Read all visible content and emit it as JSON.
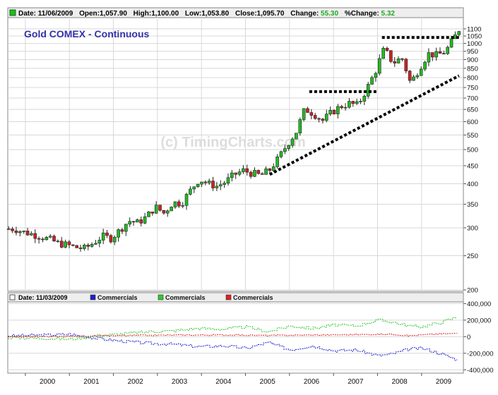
{
  "header": {
    "date_label": "Date: 11/06/2009",
    "open_label": "Open:1,057.90",
    "high_label": "High:1,100.00",
    "low_label": "Low:1,053.80",
    "close_label": "Close:1,095.70",
    "change_label": "Change:",
    "change_value": "55.30",
    "pct_change_label": "%Change:",
    "pct_change_value": "5.32"
  },
  "chart_title": "Gold COMEX - Continuous",
  "watermark": "(c) TimingCharts.com",
  "lower_header": {
    "date_label": "Date: 11/03/2009",
    "legend": [
      {
        "label": "Commercials",
        "color": "#1f1fd0"
      },
      {
        "label": "Commercials",
        "color": "#2fc92f"
      },
      {
        "label": "Commercials",
        "color": "#e02020"
      }
    ]
  },
  "colors": {
    "up_candle": "#22bb22",
    "down_candle": "#cc2222",
    "change_text": "#22aa22",
    "title": "#3333aa",
    "trendline": "#000000"
  },
  "chart_data": [
    {
      "type": "candlestick",
      "title": "Gold COMEX - Continuous",
      "y_scale": "log",
      "ylim": [
        200,
        1120
      ],
      "y_ticks": [
        200,
        250,
        300,
        350,
        400,
        450,
        500,
        550,
        600,
        650,
        700,
        750,
        800,
        850,
        900,
        950,
        1000,
        1050,
        1100
      ],
      "x_ticks": [
        "2000",
        "2001",
        "2002",
        "2003",
        "2004",
        "2005",
        "2006",
        "2007",
        "2008",
        "2009"
      ],
      "x_range": [
        1999.6,
        2009.95
      ],
      "grid": true,
      "closes": [
        [
          1999.75,
          298
        ],
        [
          1999.95,
          292
        ],
        [
          2000.15,
          288
        ],
        [
          2000.35,
          283
        ],
        [
          2000.55,
          278
        ],
        [
          2000.75,
          271
        ],
        [
          2000.95,
          268
        ],
        [
          2001.15,
          264
        ],
        [
          2001.35,
          262
        ],
        [
          2001.55,
          272
        ],
        [
          2001.75,
          284
        ],
        [
          2001.95,
          280
        ],
        [
          2002.15,
          296
        ],
        [
          2002.35,
          314
        ],
        [
          2002.55,
          310
        ],
        [
          2002.75,
          322
        ],
        [
          2002.95,
          344
        ],
        [
          2003.15,
          330
        ],
        [
          2003.35,
          354
        ],
        [
          2003.55,
          352
        ],
        [
          2003.75,
          383
        ],
        [
          2003.95,
          412
        ],
        [
          2004.15,
          400
        ],
        [
          2004.35,
          394
        ],
        [
          2004.55,
          405
        ],
        [
          2004.75,
          425
        ],
        [
          2004.95,
          436
        ],
        [
          2005.15,
          428
        ],
        [
          2005.35,
          422
        ],
        [
          2005.55,
          438
        ],
        [
          2005.75,
          472
        ],
        [
          2005.95,
          518
        ],
        [
          2006.15,
          560
        ],
        [
          2006.35,
          652
        ],
        [
          2006.55,
          632
        ],
        [
          2006.75,
          604
        ],
        [
          2006.95,
          636
        ],
        [
          2007.15,
          662
        ],
        [
          2007.35,
          676
        ],
        [
          2007.55,
          668
        ],
        [
          2007.75,
          740
        ],
        [
          2007.95,
          832
        ],
        [
          2008.15,
          965
        ],
        [
          2008.35,
          880
        ],
        [
          2008.55,
          912
        ],
        [
          2008.75,
          770
        ],
        [
          2008.95,
          850
        ],
        [
          2009.15,
          935
        ],
        [
          2009.35,
          925
        ],
        [
          2009.55,
          950
        ],
        [
          2009.75,
          1042
        ],
        [
          2009.85,
          1095.7
        ]
      ],
      "lines": [
        {
          "name": "support trendline",
          "points": [
            [
              2005.55,
              425
            ],
            [
              2009.85,
              810
            ]
          ]
        },
        {
          "name": "resistance 2006-2008",
          "points": [
            [
              2006.45,
              730
            ],
            [
              2008.0,
              730
            ]
          ]
        },
        {
          "name": "resistance 2008-2009",
          "points": [
            [
              2008.1,
              1040
            ],
            [
              2009.85,
              1040
            ]
          ]
        }
      ]
    },
    {
      "type": "line",
      "ylim": [
        -440000,
        420000
      ],
      "y_ticks": [
        -400000,
        -200000,
        0,
        200000,
        400000
      ],
      "y_tick_labels": [
        "-400,000",
        "-200,000",
        "0",
        "200,000",
        "400,000"
      ],
      "grid": true,
      "series": [
        {
          "name": "Commercials",
          "color": "#1f1fd0",
          "values": [
            [
              1999.6,
              10000
            ],
            [
              2000.5,
              20000
            ],
            [
              2001.0,
              30000
            ],
            [
              2001.6,
              -20000
            ],
            [
              2002.3,
              -60000
            ],
            [
              2002.8,
              -80000
            ],
            [
              2003.3,
              -90000
            ],
            [
              2003.9,
              -120000
            ],
            [
              2004.5,
              -110000
            ],
            [
              2005.0,
              -140000
            ],
            [
              2005.5,
              -70000
            ],
            [
              2006.0,
              -160000
            ],
            [
              2006.5,
              -110000
            ],
            [
              2007.0,
              -170000
            ],
            [
              2007.5,
              -160000
            ],
            [
              2008.0,
              -230000
            ],
            [
              2008.3,
              -210000
            ],
            [
              2008.7,
              -150000
            ],
            [
              2009.0,
              -140000
            ],
            [
              2009.4,
              -200000
            ],
            [
              2009.8,
              -280000
            ]
          ]
        },
        {
          "name": "Commercials",
          "color": "#2fc92f",
          "values": [
            [
              1999.6,
              -10000
            ],
            [
              2000.5,
              -20000
            ],
            [
              2001.0,
              -30000
            ],
            [
              2001.6,
              10000
            ],
            [
              2002.3,
              40000
            ],
            [
              2002.8,
              60000
            ],
            [
              2003.3,
              70000
            ],
            [
              2003.9,
              100000
            ],
            [
              2004.5,
              90000
            ],
            [
              2005.0,
              120000
            ],
            [
              2005.5,
              60000
            ],
            [
              2006.0,
              130000
            ],
            [
              2006.5,
              100000
            ],
            [
              2007.0,
              140000
            ],
            [
              2007.5,
              130000
            ],
            [
              2008.0,
              200000
            ],
            [
              2008.3,
              180000
            ],
            [
              2008.7,
              130000
            ],
            [
              2009.0,
              120000
            ],
            [
              2009.4,
              170000
            ],
            [
              2009.8,
              240000
            ]
          ]
        },
        {
          "name": "Commercials",
          "color": "#e02020",
          "values": [
            [
              1999.6,
              0
            ],
            [
              2000.5,
              0
            ],
            [
              2001.6,
              10000
            ],
            [
              2002.5,
              15000
            ],
            [
              2003.5,
              20000
            ],
            [
              2004.5,
              20000
            ],
            [
              2005.5,
              15000
            ],
            [
              2006.5,
              20000
            ],
            [
              2007.5,
              25000
            ],
            [
              2008.3,
              30000
            ],
            [
              2008.7,
              10000
            ],
            [
              2009.2,
              30000
            ],
            [
              2009.8,
              40000
            ]
          ]
        }
      ]
    }
  ]
}
